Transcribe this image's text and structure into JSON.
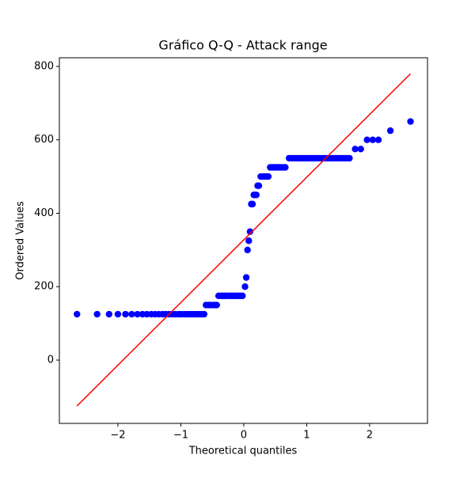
{
  "chart_data": {
    "type": "scatter",
    "title": "Gráfico Q-Q - Attack range",
    "xlabel": "Theoretical quantiles",
    "ylabel": "Ordered Values",
    "xlim": [
      -2.93,
      2.92
    ],
    "ylim": [
      -172.5,
      823.6
    ],
    "xticks": [
      {
        "value": -2,
        "label": "−2"
      },
      {
        "value": -1,
        "label": "−1"
      },
      0,
      1,
      2
    ],
    "yticks": [
      0,
      200,
      400,
      600,
      800
    ],
    "grid": false,
    "series": [
      {
        "type": "scatter",
        "color": "#0000ff",
        "x": [
          -2.65,
          -2.33,
          -2.14,
          -2.0,
          -1.88,
          -1.78,
          -1.69,
          -1.61,
          -1.54,
          -1.47,
          -1.41,
          -1.35,
          -1.29,
          -1.24,
          -1.19,
          -1.14,
          -1.09,
          -1.04,
          -1.0,
          -0.95,
          -0.91,
          -0.87,
          -0.83,
          -0.79,
          -0.75,
          -0.71,
          -0.67,
          -0.63,
          -0.6,
          -0.56,
          -0.53,
          -0.49,
          -0.46,
          -0.43,
          -0.4,
          -0.36,
          -0.33,
          -0.3,
          -0.27,
          -0.23,
          -0.2,
          -0.17,
          -0.14,
          -0.11,
          -0.08,
          -0.05,
          -0.02,
          0.02,
          0.04,
          0.06,
          0.08,
          0.1,
          0.12,
          0.14,
          0.16,
          0.18,
          0.2,
          0.22,
          0.24,
          0.27,
          0.3,
          0.33,
          0.36,
          0.39,
          0.42,
          0.45,
          0.48,
          0.51,
          0.54,
          0.57,
          0.6,
          0.63,
          0.66,
          0.72,
          0.76,
          0.8,
          0.84,
          0.88,
          0.92,
          0.96,
          1.0,
          1.04,
          1.08,
          1.12,
          1.16,
          1.2,
          1.24,
          1.28,
          1.32,
          1.36,
          1.4,
          1.44,
          1.48,
          1.52,
          1.56,
          1.6,
          1.64,
          1.68,
          1.77,
          1.86,
          1.96,
          2.05,
          2.14,
          2.33,
          2.65
        ],
        "values": [
          125,
          125,
          125,
          125,
          125,
          125,
          125,
          125,
          125,
          125,
          125,
          125,
          125,
          125,
          125,
          125,
          125,
          125,
          125,
          125,
          125,
          125,
          125,
          125,
          125,
          125,
          125,
          125,
          150,
          150,
          150,
          150,
          150,
          150,
          175,
          175,
          175,
          175,
          175,
          175,
          175,
          175,
          175,
          175,
          175,
          175,
          175,
          200,
          225,
          300,
          325,
          350,
          425,
          425,
          450,
          450,
          450,
          475,
          475,
          500,
          500,
          500,
          500,
          500,
          525,
          525,
          525,
          525,
          525,
          525,
          525,
          525,
          525,
          550,
          550,
          550,
          550,
          550,
          550,
          550,
          550,
          550,
          550,
          550,
          550,
          550,
          550,
          550,
          550,
          550,
          550,
          550,
          550,
          550,
          550,
          550,
          550,
          550,
          575,
          575,
          600,
          600,
          600,
          625,
          650
        ]
      },
      {
        "type": "line",
        "color": "#ff0000",
        "x": [
          -2.65,
          2.65
        ],
        "values": [
          -125,
          780
        ]
      }
    ]
  }
}
